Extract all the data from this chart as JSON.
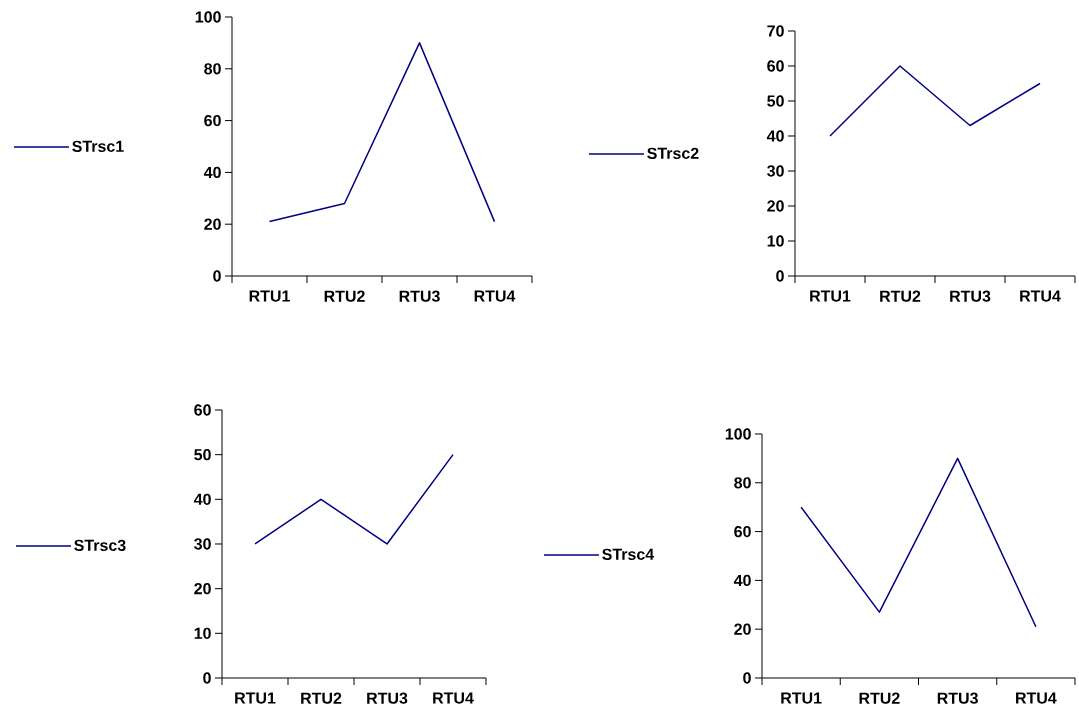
{
  "chart_data": [
    {
      "type": "line",
      "categories": [
        "RTU1",
        "RTU2",
        "RTU3",
        "RTU4"
      ],
      "series": [
        {
          "name": "STrsc1",
          "color": "#000080",
          "values": [
            21,
            28,
            90,
            21
          ]
        }
      ],
      "ylim": [
        0,
        100
      ],
      "yticks": [
        0,
        20,
        40,
        60,
        80,
        100
      ],
      "legend": "left"
    },
    {
      "type": "line",
      "categories": [
        "RTU1",
        "RTU2",
        "RTU3",
        "RTU4"
      ],
      "series": [
        {
          "name": "STrsc2",
          "color": "#000080",
          "values": [
            40,
            60,
            43,
            55
          ]
        }
      ],
      "ylim": [
        0,
        70
      ],
      "yticks": [
        0,
        10,
        20,
        30,
        40,
        50,
        60,
        70
      ],
      "legend": "left"
    },
    {
      "type": "line",
      "categories": [
        "RTU1",
        "RTU2",
        "RTU3",
        "RTU4"
      ],
      "series": [
        {
          "name": "STrsc3",
          "color": "#000080",
          "values": [
            30,
            40,
            30,
            50
          ]
        }
      ],
      "ylim": [
        0,
        60
      ],
      "yticks": [
        0,
        10,
        20,
        30,
        40,
        50,
        60
      ],
      "legend": "left"
    },
    {
      "type": "line",
      "categories": [
        "RTU1",
        "RTU2",
        "RTU3",
        "RTU4"
      ],
      "series": [
        {
          "name": "STrsc4",
          "color": "#000080",
          "values": [
            70,
            27,
            90,
            21
          ]
        }
      ],
      "ylim": [
        0,
        100
      ],
      "yticks": [
        0,
        20,
        40,
        60,
        80,
        100
      ],
      "legend": "left"
    }
  ]
}
